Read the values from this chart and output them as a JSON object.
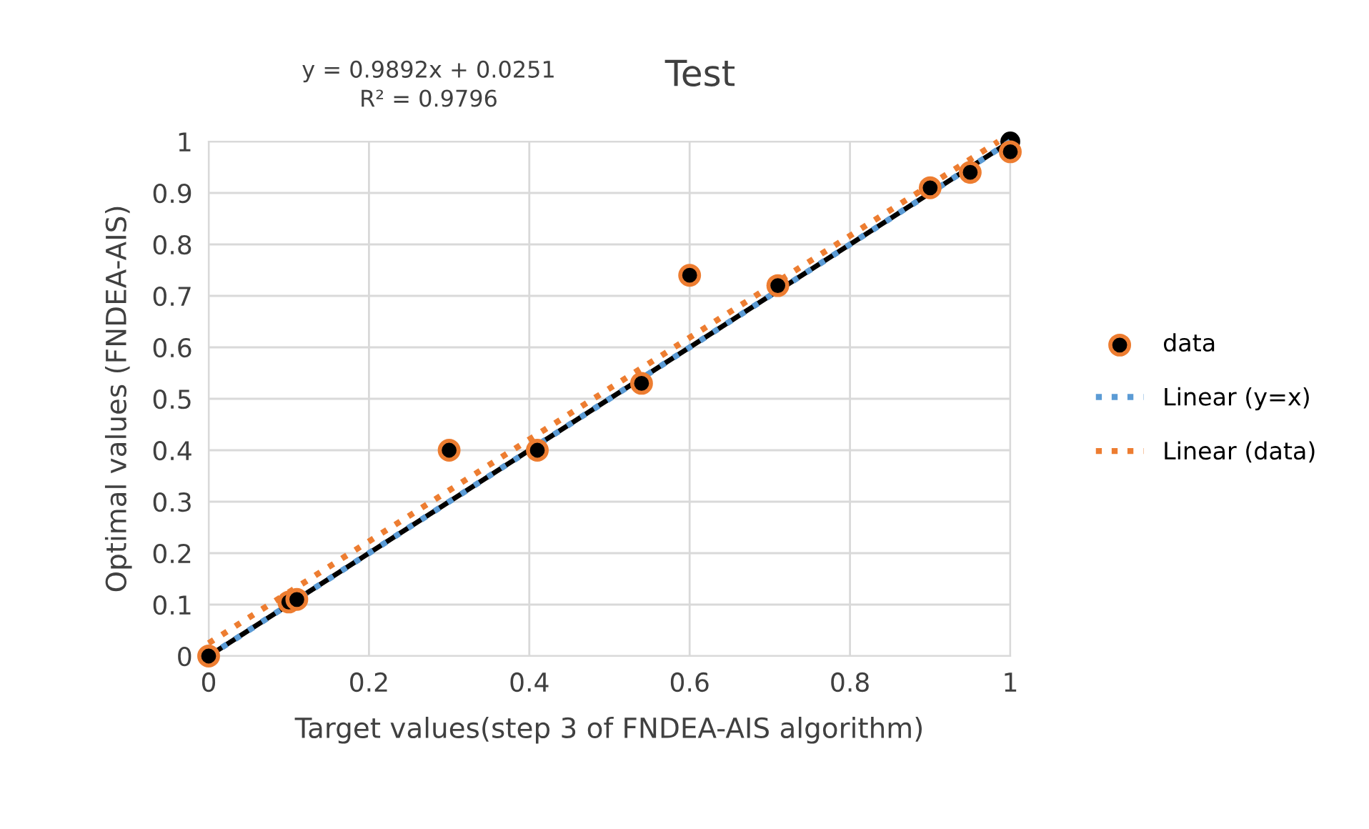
{
  "chart_data": {
    "type": "scatter",
    "title": "Test",
    "xlabel": "Target values(step 3 of FNDEA-AIS algorithm)",
    "ylabel": "Optimal values (FNDEA-AIS)",
    "annotations": [
      "y = 0.9892x + 0.0251\nR² = 0.9796"
    ],
    "series": [
      {
        "type": "line",
        "color": "#000000",
        "x": [
          0,
          1
        ],
        "values": [
          0,
          1
        ],
        "marker": "circle"
      },
      {
        "name": "data",
        "color": "#000000",
        "marker": "circle",
        "x": [
          0,
          0.1,
          0.11,
          0.3,
          0.41,
          0.54,
          0.6,
          0.71,
          0.9,
          0.95,
          1
        ],
        "values": [
          0,
          0.105,
          0.11,
          0.4,
          0.4,
          0.53,
          0.74,
          0.72,
          0.91,
          0.94,
          0.98
        ]
      },
      {
        "name": "Linear (y=x)",
        "type": "line",
        "color": "#5b9bd5",
        "line_style": "dotted",
        "x": [
          0,
          1
        ],
        "values": [
          0,
          1
        ]
      },
      {
        "name": "Linear (data)",
        "type": "line",
        "color": "#ed7d31",
        "line_style": "dotted",
        "x": [
          0,
          0.985
        ],
        "values": [
          0.025,
          1
        ]
      }
    ],
    "xlim": [
      0,
      1
    ],
    "xticks": [
      0,
      0.2,
      0.4,
      0.6,
      0.8,
      1
    ],
    "ylim": [
      0,
      1
    ],
    "yticks": [
      0,
      0.1,
      0.2,
      0.3,
      0.4,
      0.5,
      0.6,
      0.7,
      0.8,
      0.9,
      1
    ],
    "grid": true,
    "legend": "right"
  }
}
